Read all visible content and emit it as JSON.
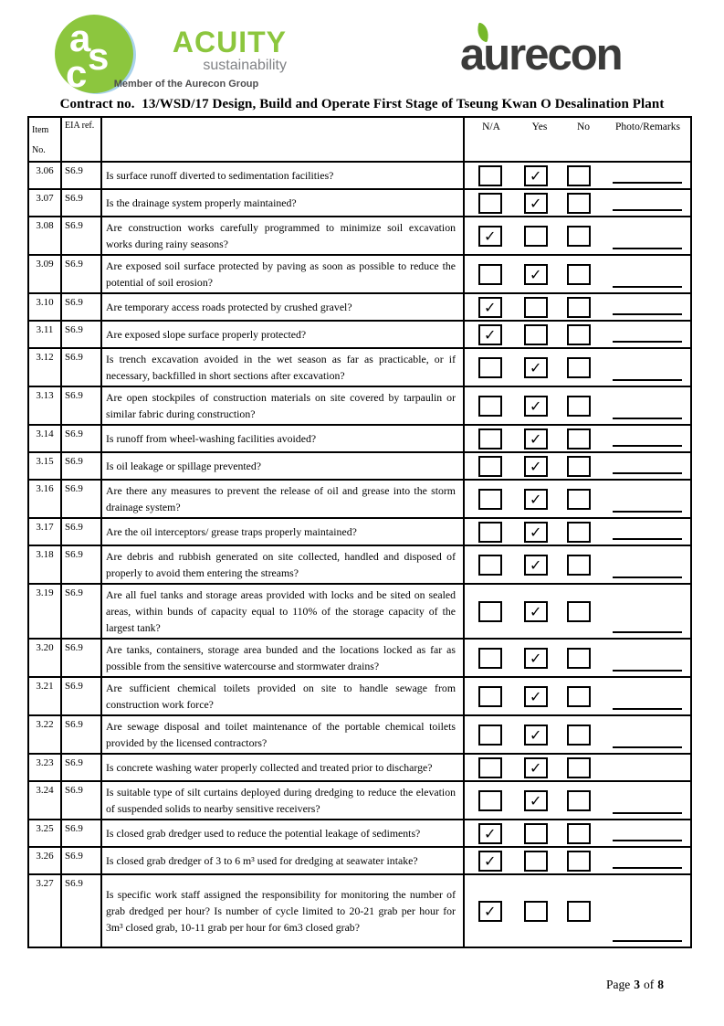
{
  "logos": {
    "acuity": {
      "monogram_letters": [
        "a",
        "s",
        "c"
      ],
      "name": "ACUITY",
      "tagline": "sustainability",
      "member_line": "Member of the Aurecon Group",
      "green": "#8CC63E",
      "tagline_gray": "#808285"
    },
    "aurecon": {
      "name": "aurecon",
      "charcoal": "#3B3B3A",
      "leaf_green": "#76B82A"
    }
  },
  "title": "Contract no.  13/WSD/17 Design, Build and Operate First Stage of Tseung Kwan O Desalination Plant",
  "table": {
    "headers": {
      "item": "Item\nNo.",
      "eia": "EIA ref.",
      "na": "N/A",
      "yes": "Yes",
      "no": "No",
      "remarks": "Photo/Remarks"
    },
    "check_glyph": "✓",
    "rows": [
      {
        "item": "3.06",
        "eia": "S6.9",
        "question": "Is surface runoff diverted to sedimentation facilities?",
        "checked": "yes",
        "remark_line": true
      },
      {
        "item": "3.07",
        "eia": "S6.9",
        "question": "Is the drainage system properly maintained?",
        "checked": "yes",
        "remark_line": true
      },
      {
        "item": "3.08",
        "eia": "S6.9",
        "question": "Are construction works carefully programmed to minimize soil excavation works during rainy seasons?",
        "checked": "na",
        "remark_line": true
      },
      {
        "item": "3.09",
        "eia": "S6.9",
        "question": "Are exposed soil surface protected by paving as soon as possible to reduce the potential of soil erosion?",
        "checked": "yes",
        "remark_line": true
      },
      {
        "item": "3.10",
        "eia": "S6.9",
        "question": "Are temporary access roads protected by crushed gravel?",
        "checked": "na",
        "remark_line": true
      },
      {
        "item": "3.11",
        "eia": "S6.9",
        "question": "Are exposed slope surface properly protected?",
        "checked": "na",
        "remark_line": true
      },
      {
        "item": "3.12",
        "eia": "S6.9",
        "question": "Is trench excavation avoided in the wet season as far as practicable, or if necessary, backfilled in short sections after excavation?",
        "checked": "yes",
        "remark_line": true
      },
      {
        "item": "3.13",
        "eia": "S6.9",
        "question": "Are open stockpiles of construction materials on site covered by tarpaulin or similar fabric during construction?",
        "checked": "yes",
        "remark_line": true
      },
      {
        "item": "3.14",
        "eia": "S6.9",
        "question": "Is runoff from wheel-washing facilities avoided?",
        "checked": "yes",
        "remark_line": true
      },
      {
        "item": "3.15",
        "eia": "S6.9",
        "question": "Is oil leakage or spillage prevented?",
        "checked": "yes",
        "remark_line": true
      },
      {
        "item": "3.16",
        "eia": "S6.9",
        "question": "Are there any measures to prevent the release of oil and grease into the storm drainage system?",
        "checked": "yes",
        "remark_line": true
      },
      {
        "item": "3.17",
        "eia": "S6.9",
        "question": "Are the oil interceptors/ grease traps properly maintained?",
        "checked": "yes",
        "remark_line": true
      },
      {
        "item": "3.18",
        "eia": "S6.9",
        "question": "Are debris and rubbish generated on site collected, handled and disposed of properly to avoid them entering the streams?",
        "checked": "yes",
        "remark_line": true
      },
      {
        "item": "3.19",
        "eia": "S6.9",
        "question": "Are all fuel tanks and storage areas provided with locks and be sited on sealed areas, within bunds of capacity equal to 110% of the storage capacity of the largest tank?",
        "checked": "yes",
        "remark_line": true
      },
      {
        "item": "3.20",
        "eia": "S6.9",
        "question": "Are tanks, containers, storage area bunded and the locations locked as far as possible from the sensitive watercourse and stormwater drains?",
        "checked": "yes",
        "remark_line": true
      },
      {
        "item": "3.21",
        "eia": "S6.9",
        "question": "Are sufficient chemical toilets provided on site to handle sewage from construction work force?",
        "checked": "yes",
        "remark_line": true
      },
      {
        "item": "3.22",
        "eia": "S6.9",
        "question": "Are sewage disposal and toilet maintenance of the portable chemical toilets provided by the licensed contractors?",
        "checked": "yes",
        "remark_line": true
      },
      {
        "item": "3.23",
        "eia": "S6.9",
        "question": "Is concrete washing water properly collected and treated prior to discharge?",
        "checked": "yes",
        "remark_line": false
      },
      {
        "item": "3.24",
        "eia": "S6.9",
        "question": "Is suitable type of silt curtains deployed during dredging to reduce the elevation of suspended solids to nearby sensitive receivers?",
        "checked": "yes",
        "remark_line": true
      },
      {
        "item": "3.25",
        "eia": "S6.9",
        "question": "Is closed grab dredger used to reduce the potential leakage of sediments?",
        "checked": "na",
        "remark_line": true
      },
      {
        "item": "3.26",
        "eia": "S6.9",
        "question": "Is closed grab dredger of 3 to 6 m³ used for dredging at seawater intake?",
        "checked": "na",
        "remark_line": true
      },
      {
        "item": "3.27",
        "eia": "S6.9",
        "question": "Is specific work staff assigned the responsibility for monitoring the number of grab dredged per hour? Is number of cycle limited to 20-21 grab per hour for 3m³ closed grab, 10-11 grab per hour for 6m3 closed grab?",
        "checked": "na",
        "remark_line": true
      }
    ]
  },
  "footer": {
    "page_word": "Page",
    "page_number": "3",
    "of_word": "of",
    "total_pages": "8"
  }
}
